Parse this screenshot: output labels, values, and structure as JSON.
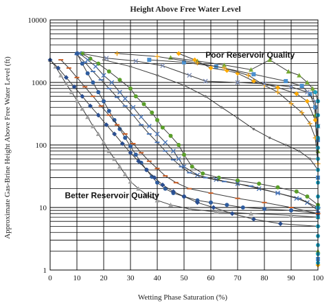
{
  "chart_data": {
    "type": "scatter",
    "title": "Height Above Free Water Level",
    "xlabel": "Wetting Phase Saturation (%)",
    "ylabel": "Approximate Gas-Brine Height Above Free Water Level (ft)",
    "xlim": [
      0,
      100
    ],
    "ylim": [
      1,
      10000
    ],
    "yscale": "log",
    "xticks": [
      "0",
      "10",
      "20",
      "30",
      "40",
      "50",
      "60",
      "70",
      "80",
      "90",
      "100"
    ],
    "yticks": [
      "1",
      "10",
      "100",
      "1000",
      "10000"
    ],
    "grid": true,
    "legend": "none",
    "annotations": [
      {
        "text": "Poor Reservoir Quality",
        "x": 58,
        "y": 2500
      },
      {
        "text": "Better Reservoir Quality",
        "x": 5.5,
        "y": 14
      }
    ],
    "series": [
      {
        "marker": "triangle",
        "color": "#77aa33",
        "points": [
          [
            45,
            2500
          ],
          [
            55,
            2200
          ],
          [
            65,
            1900
          ],
          [
            75,
            1600
          ],
          [
            82,
            2300
          ],
          [
            89,
            1500
          ],
          [
            93,
            1300
          ],
          [
            96,
            1000
          ],
          [
            98,
            800
          ],
          [
            99,
            300
          ],
          [
            100,
            80
          ],
          [
            100,
            10
          ],
          [
            100,
            2
          ]
        ]
      },
      {
        "marker": "square",
        "color": "#4a90d0",
        "points": [
          [
            37,
            2300
          ],
          [
            50,
            2100
          ],
          [
            62,
            1800
          ],
          [
            76,
            1350
          ],
          [
            88,
            1050
          ],
          [
            94,
            880
          ],
          [
            97,
            650
          ],
          [
            99,
            400
          ],
          [
            100,
            120
          ],
          [
            100,
            30
          ],
          [
            100,
            8
          ],
          [
            100,
            1.5
          ]
        ]
      },
      {
        "marker": "diamond",
        "color": "#ffaa00",
        "points": [
          [
            48,
            2900
          ],
          [
            54,
            2300
          ],
          [
            60,
            1700
          ],
          [
            66,
            1550
          ],
          [
            70,
            1400
          ],
          [
            76,
            1050
          ],
          [
            85,
            830
          ],
          [
            92,
            660
          ],
          [
            96,
            500
          ],
          [
            99,
            250
          ],
          [
            100,
            60
          ],
          [
            100,
            5
          ],
          [
            100,
            1.2
          ]
        ]
      },
      {
        "marker": "cross",
        "color": "#e8a020",
        "points": [
          [
            25,
            2900
          ],
          [
            40,
            2600
          ],
          [
            55,
            2050
          ],
          [
            65,
            1700
          ],
          [
            74,
            1300
          ],
          [
            80,
            900
          ],
          [
            85,
            700
          ],
          [
            90,
            460
          ],
          [
            94,
            330
          ],
          [
            97,
            220
          ],
          [
            99,
            130
          ],
          [
            100,
            50
          ]
        ]
      },
      {
        "marker": "x",
        "color": "#8090b8",
        "points": [
          [
            12,
            2900
          ],
          [
            21,
            2450
          ],
          [
            32,
            2200
          ],
          [
            42,
            1850
          ],
          [
            52,
            1300
          ],
          [
            58,
            1050
          ],
          [
            70,
            1000
          ],
          [
            80,
            950
          ],
          [
            90,
            850
          ],
          [
            96,
            700
          ],
          [
            99,
            500
          ],
          [
            100,
            200
          ]
        ]
      },
      {
        "marker": "circle",
        "color": "#5a9e2a",
        "points": [
          [
            12,
            2900
          ],
          [
            15,
            2400
          ],
          [
            18,
            2000
          ],
          [
            22,
            1500
          ],
          [
            26,
            1100
          ],
          [
            30,
            800
          ],
          [
            32,
            600
          ],
          [
            35,
            450
          ],
          [
            38,
            330
          ],
          [
            40,
            250
          ],
          [
            42,
            190
          ],
          [
            45,
            140
          ],
          [
            48,
            100
          ],
          [
            50,
            70
          ],
          [
            53,
            45
          ],
          [
            57,
            35
          ],
          [
            63,
            30
          ],
          [
            70,
            27
          ],
          [
            78,
            24
          ],
          [
            85,
            21
          ],
          [
            92,
            18
          ],
          [
            96,
            15
          ],
          [
            100,
            11
          ]
        ]
      },
      {
        "marker": "x",
        "color": "#4a76b8",
        "points": [
          [
            11,
            2900
          ],
          [
            14,
            2300
          ],
          [
            17,
            1800
          ],
          [
            20,
            1300
          ],
          [
            23,
            1000
          ],
          [
            26,
            700
          ],
          [
            28,
            550
          ],
          [
            31,
            400
          ],
          [
            34,
            280
          ],
          [
            37,
            200
          ],
          [
            40,
            150
          ],
          [
            43,
            110
          ],
          [
            46,
            80
          ],
          [
            48,
            60
          ],
          [
            50,
            45
          ],
          [
            55,
            33
          ],
          [
            62,
            28
          ],
          [
            70,
            24
          ],
          [
            78,
            20
          ],
          [
            85,
            17
          ],
          [
            92,
            14
          ],
          [
            96,
            12
          ],
          [
            100,
            9
          ]
        ]
      },
      {
        "marker": "dash",
        "color": "#4a76b8",
        "points": [
          [
            10,
            2800
          ],
          [
            13,
            2100
          ],
          [
            16,
            1500
          ],
          [
            19,
            1100
          ],
          [
            22,
            800
          ],
          [
            25,
            580
          ],
          [
            28,
            420
          ],
          [
            31,
            300
          ],
          [
            34,
            210
          ],
          [
            37,
            150
          ],
          [
            40,
            110
          ],
          [
            43,
            80
          ],
          [
            46,
            58
          ],
          [
            49,
            45
          ],
          [
            52,
            36
          ],
          [
            58,
            30
          ],
          [
            65,
            26
          ],
          [
            75,
            22
          ],
          [
            85,
            17
          ],
          [
            93,
            14
          ],
          [
            100,
            10
          ]
        ]
      },
      {
        "marker": "circle",
        "color": "#2e5c9e",
        "points": [
          [
            10,
            2900
          ],
          [
            12,
            2000
          ],
          [
            14,
            1400
          ],
          [
            16,
            1000
          ],
          [
            18,
            700
          ],
          [
            20,
            500
          ],
          [
            22,
            350
          ],
          [
            24,
            250
          ],
          [
            26,
            180
          ],
          [
            28,
            130
          ],
          [
            30,
            95
          ],
          [
            32,
            70
          ],
          [
            34,
            52
          ],
          [
            36,
            40
          ],
          [
            38,
            31
          ],
          [
            40,
            25
          ],
          [
            43,
            20
          ],
          [
            46,
            17
          ],
          [
            50,
            15
          ],
          [
            55,
            13
          ],
          [
            60,
            12
          ],
          [
            66,
            11
          ],
          [
            72,
            10
          ],
          [
            80,
            9.5
          ],
          [
            90,
            9
          ],
          [
            100,
            8
          ]
        ]
      },
      {
        "marker": "dash",
        "color": "#c85a20",
        "points": [
          [
            4,
            2300
          ],
          [
            7,
            1700
          ],
          [
            10,
            1200
          ],
          [
            13,
            850
          ],
          [
            16,
            600
          ],
          [
            19,
            420
          ],
          [
            22,
            300
          ],
          [
            25,
            210
          ],
          [
            28,
            150
          ],
          [
            31,
            105
          ],
          [
            34,
            75
          ],
          [
            37,
            55
          ],
          [
            40,
            42
          ],
          [
            43,
            32
          ],
          [
            47,
            25
          ],
          [
            52,
            20
          ],
          [
            60,
            17
          ],
          [
            70,
            14
          ],
          [
            80,
            12
          ],
          [
            90,
            10
          ],
          [
            100,
            8
          ]
        ]
      },
      {
        "marker": "triangle",
        "color": "#a0a0a0",
        "points": [
          [
            0,
            2300
          ],
          [
            2,
            1800
          ],
          [
            4,
            1300
          ],
          [
            6,
            950
          ],
          [
            8,
            700
          ],
          [
            10,
            520
          ],
          [
            12,
            380
          ],
          [
            14,
            280
          ],
          [
            16,
            200
          ],
          [
            18,
            150
          ],
          [
            20,
            110
          ],
          [
            22,
            80
          ],
          [
            24,
            60
          ],
          [
            26,
            45
          ],
          [
            28,
            34
          ],
          [
            30,
            26
          ],
          [
            33,
            20
          ],
          [
            36,
            16
          ],
          [
            40,
            13
          ],
          [
            45,
            11
          ],
          [
            52,
            9.5
          ],
          [
            62,
            8.5
          ],
          [
            75,
            8
          ],
          [
            90,
            7.5
          ],
          [
            100,
            7
          ]
        ]
      },
      {
        "marker": "diamond",
        "color": "#2a4e90",
        "points": [
          [
            0,
            2300
          ],
          [
            3,
            1700
          ],
          [
            6,
            1200
          ],
          [
            9,
            850
          ],
          [
            12,
            600
          ],
          [
            15,
            420
          ],
          [
            18,
            300
          ],
          [
            21,
            210
          ],
          [
            24,
            150
          ],
          [
            27,
            105
          ],
          [
            30,
            75
          ],
          [
            33,
            55
          ],
          [
            36,
            40
          ],
          [
            39,
            30
          ],
          [
            42,
            23
          ],
          [
            46,
            18
          ],
          [
            50,
            15
          ],
          [
            55,
            12
          ],
          [
            61,
            10
          ],
          [
            68,
            8
          ],
          [
            76,
            6.5
          ],
          [
            86,
            5.5
          ],
          [
            100,
            5
          ]
        ]
      },
      {
        "marker": "dot",
        "color": "#707070",
        "points": [
          [
            20,
            2300
          ],
          [
            30,
            1800
          ],
          [
            40,
            1300
          ],
          [
            50,
            900
          ],
          [
            58,
            600
          ],
          [
            64,
            400
          ],
          [
            70,
            270
          ],
          [
            76,
            180
          ],
          [
            82,
            130
          ],
          [
            88,
            100
          ],
          [
            93,
            80
          ],
          [
            97,
            60
          ],
          [
            100,
            40
          ]
        ]
      },
      {
        "marker": "circle",
        "color": "#20a0c0",
        "points": [
          [
            99,
            700
          ],
          [
            100,
            500
          ],
          [
            100,
            300
          ],
          [
            100,
            200
          ],
          [
            100,
            130
          ],
          [
            100,
            90
          ],
          [
            100,
            60
          ],
          [
            100,
            40
          ],
          [
            100,
            25
          ],
          [
            100,
            15
          ],
          [
            100,
            10
          ],
          [
            100,
            7
          ],
          [
            100,
            5
          ],
          [
            100,
            3.5
          ],
          [
            100,
            2.5
          ],
          [
            100,
            1.8
          ],
          [
            100,
            1.3
          ]
        ]
      }
    ]
  }
}
